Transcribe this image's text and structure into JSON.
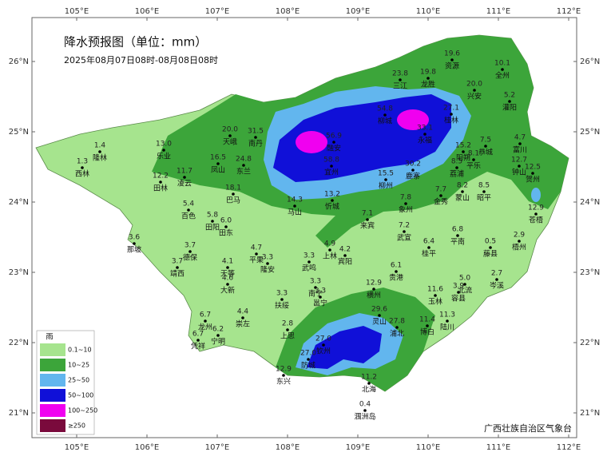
{
  "map": {
    "title": "降水预报图（单位：mm）",
    "subtitle": "2025年08月07日08时-08月08日08时",
    "lon_ticks": [
      {
        "value": 105,
        "label": "105°E"
      },
      {
        "value": 106,
        "label": "106°E"
      },
      {
        "value": 107,
        "label": "107°E"
      },
      {
        "value": 108,
        "label": "108°E"
      },
      {
        "value": 109,
        "label": "109°E"
      },
      {
        "value": 110,
        "label": "110°E"
      },
      {
        "value": 111,
        "label": "111°E"
      },
      {
        "value": 112,
        "label": "112°E"
      }
    ],
    "lat_ticks": [
      {
        "value": 26,
        "label": "26°N"
      },
      {
        "value": 25,
        "label": "25°N"
      },
      {
        "value": 24,
        "label": "24°N"
      },
      {
        "value": 23,
        "label": "23°N"
      },
      {
        "value": 22,
        "label": "22°N"
      },
      {
        "value": 21,
        "label": "21°N"
      }
    ],
    "stations": [
      {
        "name": "隆林",
        "value": "1.4"
      },
      {
        "name": "西林",
        "value": "1.3"
      },
      {
        "name": "乐业",
        "value": "13.0"
      },
      {
        "name": "田林",
        "value": "12.2"
      },
      {
        "name": "凌云",
        "value": "11.7"
      },
      {
        "name": "凤山",
        "value": "16.5"
      },
      {
        "name": "东兰",
        "value": "24.8"
      },
      {
        "name": "南丹",
        "value": "31.5"
      },
      {
        "name": "天峨",
        "value": "20.0"
      },
      {
        "name": "巴马",
        "value": "18.1"
      },
      {
        "name": "百色",
        "value": "5.4"
      },
      {
        "name": "田阳",
        "value": "5.8"
      },
      {
        "name": "田东",
        "value": "6.0"
      },
      {
        "name": "那坡",
        "value": "3.6"
      },
      {
        "name": "德保",
        "value": "3.7"
      },
      {
        "name": "靖西",
        "value": "3.7"
      },
      {
        "name": "平果",
        "value": "4.7"
      },
      {
        "name": "隆安",
        "value": "3.3"
      },
      {
        "name": "天等",
        "value": "4.1"
      },
      {
        "name": "大新",
        "value": "4.6"
      },
      {
        "name": "崇左",
        "value": "4.4"
      },
      {
        "name": "龙州",
        "value": "6.7"
      },
      {
        "name": "宁明",
        "value": "6.2"
      },
      {
        "name": "凭祥",
        "value": "6.7"
      },
      {
        "name": "马山",
        "value": "14.3"
      },
      {
        "name": "武鸣",
        "value": "3.3"
      },
      {
        "name": "上林",
        "value": "4.9"
      },
      {
        "name": "宾阳",
        "value": "4.2"
      },
      {
        "name": "扶绥",
        "value": "3.3"
      },
      {
        "name": "南宁",
        "value": "3.3"
      },
      {
        "name": "邕宁",
        "value": "3.3"
      },
      {
        "name": "上思",
        "value": "2.8"
      },
      {
        "name": "东兴",
        "value": "12.9"
      },
      {
        "name": "钦州",
        "value": "27.0"
      },
      {
        "name": "防城",
        "value": "27.0"
      },
      {
        "name": "北海",
        "value": "11.2"
      },
      {
        "name": "涠洲岛",
        "value": "0.4"
      },
      {
        "name": "灵山",
        "value": "29.6"
      },
      {
        "name": "浦北",
        "value": "27.8"
      },
      {
        "name": "横州",
        "value": "12.9"
      },
      {
        "name": "贵港",
        "value": "6.1"
      },
      {
        "name": "来宾",
        "value": "7.1"
      },
      {
        "name": "忻城",
        "value": "13.2"
      },
      {
        "name": "象州",
        "value": "7.8"
      },
      {
        "name": "武宣",
        "value": "7.2"
      },
      {
        "name": "桂平",
        "value": "6.4"
      },
      {
        "name": "平南",
        "value": "6.8"
      },
      {
        "name": "藤县",
        "value": "0.5"
      },
      {
        "name": "苍梧",
        "value": "12.9"
      },
      {
        "name": "梧州",
        "value": "2.9"
      },
      {
        "name": "岑溪",
        "value": "2.7"
      },
      {
        "name": "容县",
        "value": "3.9"
      },
      {
        "name": "北流",
        "value": "5.0"
      },
      {
        "name": "玉林",
        "value": "11.6"
      },
      {
        "name": "博白",
        "value": "11.4"
      },
      {
        "name": "陆川",
        "value": "11.3"
      },
      {
        "name": "金秀",
        "value": "7.7"
      },
      {
        "name": "蒙山",
        "value": "8.2"
      },
      {
        "name": "昭平",
        "value": "8.5"
      },
      {
        "name": "荔浦",
        "value": "8.5"
      },
      {
        "name": "阳朔",
        "value": "15.2"
      },
      {
        "name": "平乐",
        "value": "8.1"
      },
      {
        "name": "恭城",
        "value": "7.5"
      },
      {
        "name": "富川",
        "value": "4.7"
      },
      {
        "name": "钟山",
        "value": "12.7"
      },
      {
        "name": "贺州",
        "value": "12.5"
      },
      {
        "name": "鹿寨",
        "value": "30.2"
      },
      {
        "name": "柳州",
        "value": "15.5"
      },
      {
        "name": "三江",
        "value": "23.8"
      },
      {
        "name": "龙胜",
        "value": "19.8"
      },
      {
        "name": "资源",
        "value": "19.6"
      },
      {
        "name": "全州",
        "value": "10.1"
      },
      {
        "name": "兴安",
        "value": "20.0"
      },
      {
        "name": "灌阳",
        "value": "5.2"
      },
      {
        "name": "桂林",
        "value": "27.1"
      },
      {
        "name": "宜州",
        "value": "58.8"
      },
      {
        "name": "柳城",
        "value": "54.8"
      },
      {
        "name": "融安",
        "value": "56.9"
      },
      {
        "name": "永福",
        "value": "33.1"
      }
    ],
    "legend": {
      "title": "雨",
      "items": [
        {
          "label": "0.1~10",
          "color": "#a6e48e"
        },
        {
          "label": "10~25",
          "color": "#3ca53a"
        },
        {
          "label": "25~50",
          "color": "#62b6ee"
        },
        {
          "label": "50~100",
          "color": "#1010d8"
        },
        {
          "label": "100~250",
          "color": "#f000f0"
        },
        {
          "label": "≥250",
          "color": "#7a0a3c"
        }
      ]
    },
    "credit": "广西壮族自治区气象台"
  }
}
